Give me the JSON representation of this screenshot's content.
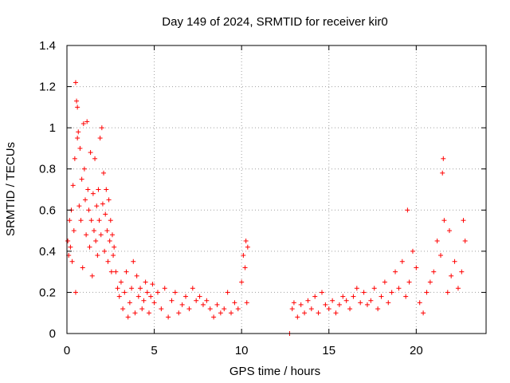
{
  "chart_data": {
    "type": "scatter",
    "title": "Day 149 of 2024, SRMTID for receiver kir0",
    "xlabel": "GPS time / hours",
    "ylabel": "SRMTID / TECUs",
    "xlim": [
      0,
      24
    ],
    "ylim": [
      0,
      1.4
    ],
    "xticks": [
      0,
      5,
      10,
      15,
      20
    ],
    "xtick_labels": [
      "0",
      "5",
      "10",
      "15",
      "20"
    ],
    "yticks": [
      0,
      0.2,
      0.4,
      0.6,
      0.8,
      1,
      1.2,
      1.4
    ],
    "ytick_labels": [
      "0",
      "0.2",
      "0.4",
      "0.6",
      "0.8",
      "1",
      "1.2",
      "1.4"
    ],
    "grid": true,
    "marker": "plus",
    "series": [
      {
        "name": "kir0",
        "color": "#ff0000",
        "points": [
          [
            0.05,
            0.45
          ],
          [
            0.1,
            0.38
          ],
          [
            0.15,
            0.55
          ],
          [
            0.2,
            0.42
          ],
          [
            0.25,
            0.6
          ],
          [
            0.3,
            0.35
          ],
          [
            0.35,
            0.72
          ],
          [
            0.4,
            0.5
          ],
          [
            0.45,
            0.85
          ],
          [
            0.5,
            0.2
          ],
          [
            0.5,
            1.22
          ],
          [
            0.55,
            1.13
          ],
          [
            0.6,
            1.1
          ],
          [
            0.6,
            0.95
          ],
          [
            0.65,
            0.98
          ],
          [
            0.7,
            0.62
          ],
          [
            0.75,
            0.9
          ],
          [
            0.8,
            0.55
          ],
          [
            0.85,
            0.75
          ],
          [
            0.9,
            0.32
          ],
          [
            0.95,
            1.02
          ],
          [
            1.0,
            0.8
          ],
          [
            1.05,
            0.65
          ],
          [
            1.1,
            0.48
          ],
          [
            1.15,
            1.03
          ],
          [
            1.2,
            0.7
          ],
          [
            1.25,
            0.6
          ],
          [
            1.3,
            0.42
          ],
          [
            1.35,
            0.88
          ],
          [
            1.4,
            0.55
          ],
          [
            1.45,
            0.28
          ],
          [
            1.5,
            0.68
          ],
          [
            1.55,
            0.5
          ],
          [
            1.6,
            0.85
          ],
          [
            1.65,
            0.45
          ],
          [
            1.7,
            0.62
          ],
          [
            1.75,
            0.38
          ],
          [
            1.8,
            0.7
          ],
          [
            1.85,
            0.55
          ],
          [
            1.9,
            0.95
          ],
          [
            1.95,
            0.48
          ],
          [
            2.0,
            1.0
          ],
          [
            2.05,
            0.63
          ],
          [
            2.1,
            0.78
          ],
          [
            2.15,
            0.4
          ],
          [
            2.2,
            0.58
          ],
          [
            2.25,
            0.7
          ],
          [
            2.3,
            0.5
          ],
          [
            2.35,
            0.35
          ],
          [
            2.4,
            0.65
          ],
          [
            2.45,
            0.45
          ],
          [
            2.5,
            0.55
          ],
          [
            2.55,
            0.3
          ],
          [
            2.6,
            0.48
          ],
          [
            2.65,
            0.38
          ],
          [
            2.7,
            0.42
          ],
          [
            2.8,
            0.3
          ],
          [
            2.9,
            0.22
          ],
          [
            3.0,
            0.18
          ],
          [
            3.1,
            0.25
          ],
          [
            3.2,
            0.12
          ],
          [
            3.3,
            0.2
          ],
          [
            3.4,
            0.3
          ],
          [
            3.5,
            0.08
          ],
          [
            3.6,
            0.15
          ],
          [
            3.7,
            0.22
          ],
          [
            3.8,
            0.35
          ],
          [
            3.9,
            0.1
          ],
          [
            4.0,
            0.28
          ],
          [
            4.1,
            0.18
          ],
          [
            4.2,
            0.22
          ],
          [
            4.3,
            0.12
          ],
          [
            4.4,
            0.16
          ],
          [
            4.5,
            0.25
          ],
          [
            4.6,
            0.2
          ],
          [
            4.7,
            0.1
          ],
          [
            4.8,
            0.18
          ],
          [
            4.9,
            0.24
          ],
          [
            5.0,
            0.15
          ],
          [
            5.2,
            0.2
          ],
          [
            5.4,
            0.12
          ],
          [
            5.6,
            0.22
          ],
          [
            5.8,
            0.08
          ],
          [
            6.0,
            0.16
          ],
          [
            6.2,
            0.2
          ],
          [
            6.4,
            0.1
          ],
          [
            6.6,
            0.14
          ],
          [
            6.8,
            0.18
          ],
          [
            7.0,
            0.12
          ],
          [
            7.2,
            0.22
          ],
          [
            7.4,
            0.16
          ],
          [
            7.6,
            0.18
          ],
          [
            7.8,
            0.14
          ],
          [
            8.0,
            0.16
          ],
          [
            8.2,
            0.12
          ],
          [
            8.4,
            0.08
          ],
          [
            8.6,
            0.14
          ],
          [
            8.8,
            0.1
          ],
          [
            9.0,
            0.12
          ],
          [
            9.2,
            0.2
          ],
          [
            9.4,
            0.1
          ],
          [
            9.6,
            0.15
          ],
          [
            9.8,
            0.12
          ],
          [
            10.0,
            0.25
          ],
          [
            10.1,
            0.38
          ],
          [
            10.2,
            0.32
          ],
          [
            10.25,
            0.45
          ],
          [
            10.3,
            0.15
          ],
          [
            10.35,
            0.42
          ],
          [
            12.75,
            0.0
          ],
          [
            12.9,
            0.12
          ],
          [
            13.0,
            0.15
          ],
          [
            13.2,
            0.08
          ],
          [
            13.4,
            0.14
          ],
          [
            13.6,
            0.1
          ],
          [
            13.8,
            0.16
          ],
          [
            14.0,
            0.12
          ],
          [
            14.2,
            0.18
          ],
          [
            14.4,
            0.1
          ],
          [
            14.6,
            0.2
          ],
          [
            14.8,
            0.14
          ],
          [
            15.0,
            0.12
          ],
          [
            15.2,
            0.16
          ],
          [
            15.4,
            0.1
          ],
          [
            15.6,
            0.14
          ],
          [
            15.8,
            0.18
          ],
          [
            16.0,
            0.16
          ],
          [
            16.2,
            0.12
          ],
          [
            16.4,
            0.18
          ],
          [
            16.6,
            0.22
          ],
          [
            16.8,
            0.15
          ],
          [
            17.0,
            0.2
          ],
          [
            17.2,
            0.14
          ],
          [
            17.4,
            0.16
          ],
          [
            17.6,
            0.22
          ],
          [
            17.8,
            0.12
          ],
          [
            18.0,
            0.18
          ],
          [
            18.2,
            0.25
          ],
          [
            18.4,
            0.15
          ],
          [
            18.6,
            0.2
          ],
          [
            18.8,
            0.3
          ],
          [
            19.0,
            0.22
          ],
          [
            19.2,
            0.35
          ],
          [
            19.4,
            0.18
          ],
          [
            19.5,
            0.6
          ],
          [
            19.6,
            0.25
          ],
          [
            19.8,
            0.4
          ],
          [
            20.0,
            0.32
          ],
          [
            20.2,
            0.15
          ],
          [
            20.4,
            0.1
          ],
          [
            20.6,
            0.2
          ],
          [
            20.8,
            0.25
          ],
          [
            21.0,
            0.3
          ],
          [
            21.2,
            0.45
          ],
          [
            21.4,
            0.38
          ],
          [
            21.5,
            0.78
          ],
          [
            21.55,
            0.85
          ],
          [
            21.6,
            0.55
          ],
          [
            21.8,
            0.2
          ],
          [
            21.9,
            0.5
          ],
          [
            22.0,
            0.28
          ],
          [
            22.2,
            0.35
          ],
          [
            22.4,
            0.22
          ],
          [
            22.6,
            0.3
          ],
          [
            22.7,
            0.55
          ],
          [
            22.8,
            0.45
          ]
        ]
      }
    ]
  }
}
